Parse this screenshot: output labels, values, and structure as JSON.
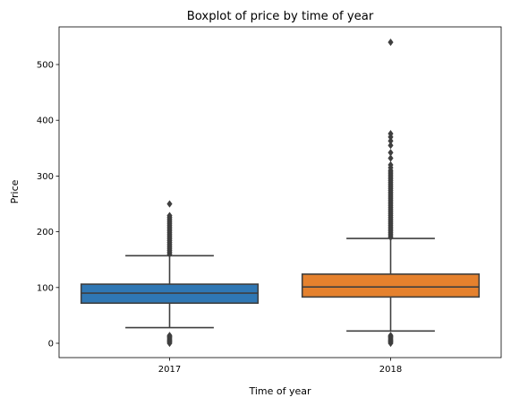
{
  "chart_data": {
    "type": "boxplot",
    "title": "Boxplot of price by time of year",
    "xlabel": "Time of year",
    "ylabel": "Price",
    "ylim": [
      -28,
      568
    ],
    "yticks": [
      0,
      100,
      200,
      300,
      400,
      500
    ],
    "categories": [
      "2017",
      "2018"
    ],
    "boxes": [
      {
        "category": "2017",
        "color": "#2f77b4",
        "q1": 72,
        "median": 90,
        "q3": 106,
        "whisker_low": 28,
        "whisker_high": 157,
        "outliers_high": [
          160,
          163,
          166,
          169,
          172,
          175,
          178,
          181,
          184,
          187,
          190,
          193,
          196,
          199,
          202,
          205,
          208,
          211,
          214,
          217,
          220,
          223,
          226,
          229,
          250
        ],
        "outliers_low": [
          0,
          2,
          4,
          6,
          8,
          10,
          12,
          14
        ]
      },
      {
        "category": "2018",
        "color": "#e5812d",
        "q1": 83,
        "median": 101,
        "q3": 124,
        "whisker_low": 22,
        "whisker_high": 188,
        "outliers_high": [
          190,
          193,
          196,
          199,
          202,
          205,
          208,
          211,
          214,
          217,
          220,
          223,
          226,
          229,
          232,
          235,
          238,
          241,
          244,
          247,
          250,
          253,
          256,
          259,
          262,
          265,
          268,
          271,
          274,
          277,
          280,
          283,
          286,
          289,
          292,
          295,
          298,
          301,
          304,
          307,
          310,
          315,
          320,
          332,
          342,
          355,
          363,
          370,
          376,
          540
        ],
        "outliers_low": [
          0,
          2,
          4,
          6,
          8,
          10,
          12,
          14
        ]
      }
    ],
    "line_color": "#3f3f3f"
  }
}
